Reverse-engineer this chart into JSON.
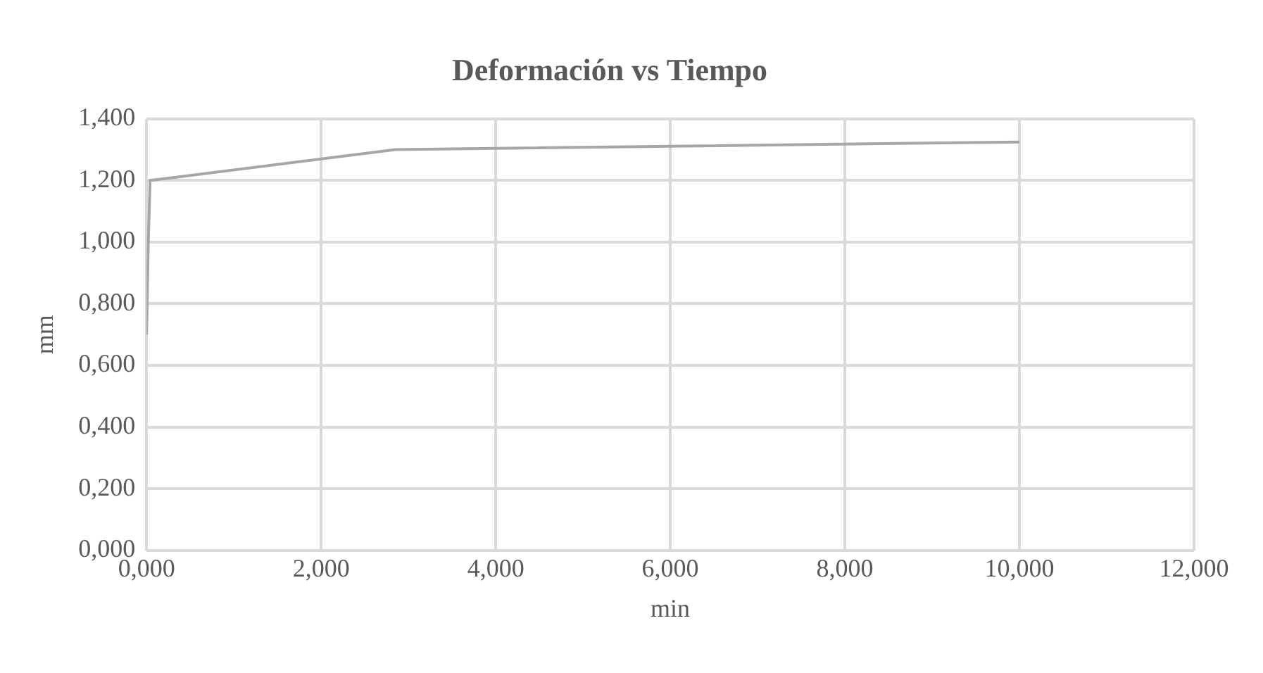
{
  "chart_data": {
    "type": "line",
    "title": "Deformación vs Tiempo",
    "xlabel": "min",
    "ylabel": "mm",
    "x": [
      0,
      0.02,
      0.04,
      2.85,
      10.0
    ],
    "series": [
      {
        "color": "#a6a6a6",
        "values": [
          0.7,
          1.0,
          1.2,
          1.3,
          1.325
        ]
      }
    ],
    "xlim": [
      0,
      12
    ],
    "xticks": [
      {
        "value": 0,
        "label": "0,000"
      },
      {
        "value": 2,
        "label": "2,000"
      },
      {
        "value": 4,
        "label": "4,000"
      },
      {
        "value": 6,
        "label": "6,000"
      },
      {
        "value": 8,
        "label": "8,000"
      },
      {
        "value": 10,
        "label": "10,000"
      },
      {
        "value": 12,
        "label": "12,000"
      }
    ],
    "ylim": [
      0,
      1.4
    ],
    "yticks": [
      {
        "value": 0,
        "label": "0,000"
      },
      {
        "value": 0.2,
        "label": "0,200"
      },
      {
        "value": 0.4,
        "label": "0,400"
      },
      {
        "value": 0.6,
        "label": "0,600"
      },
      {
        "value": 0.8,
        "label": "0,800"
      },
      {
        "value": 1.0,
        "label": "1,000"
      },
      {
        "value": 1.2,
        "label": "1,200"
      },
      {
        "value": 1.4,
        "label": "1,400"
      }
    ],
    "grid": true,
    "legend": false,
    "marker": "none",
    "line_style": "solid"
  }
}
